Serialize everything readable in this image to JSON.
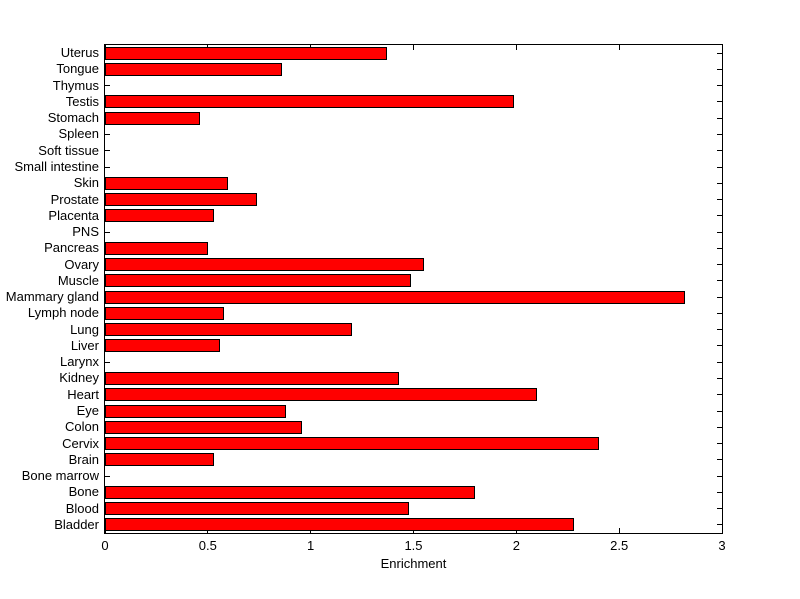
{
  "chart_data": {
    "type": "bar",
    "orientation": "horizontal",
    "title": "",
    "xlabel": "Enrichment",
    "ylabel": "",
    "xlim": [
      0,
      3
    ],
    "xticks": [
      0,
      0.5,
      1,
      1.5,
      2,
      2.5,
      3
    ],
    "xtick_labels": [
      "0",
      "0.5",
      "1",
      "1.5",
      "2",
      "2.5",
      "3"
    ],
    "grid": false,
    "legend": false,
    "bar_color": "#FF0000",
    "bar_edge_color": "#000000",
    "axis_color": "#000000",
    "background_color": "#FFFFFF",
    "categories": [
      "Uterus",
      "Tongue",
      "Thymus",
      "Testis",
      "Stomach",
      "Spleen",
      "Soft tissue",
      "Small intestine",
      "Skin",
      "Prostate",
      "Placenta",
      "PNS",
      "Pancreas",
      "Ovary",
      "Muscle",
      "Mammary gland",
      "Lymph node",
      "Lung",
      "Liver",
      "Larynx",
      "Kidney",
      "Heart",
      "Eye",
      "Colon",
      "Cervix",
      "Brain",
      "Bone marrow",
      "Bone",
      "Blood",
      "Bladder"
    ],
    "values": [
      1.37,
      0.86,
      0,
      1.99,
      0.46,
      0,
      0,
      0,
      0.6,
      0.74,
      0.53,
      0,
      0.5,
      1.55,
      1.49,
      2.82,
      0.58,
      1.2,
      0.56,
      0,
      1.43,
      2.1,
      0.88,
      0.96,
      2.4,
      0.53,
      0,
      1.8,
      1.48,
      2.28
    ]
  }
}
